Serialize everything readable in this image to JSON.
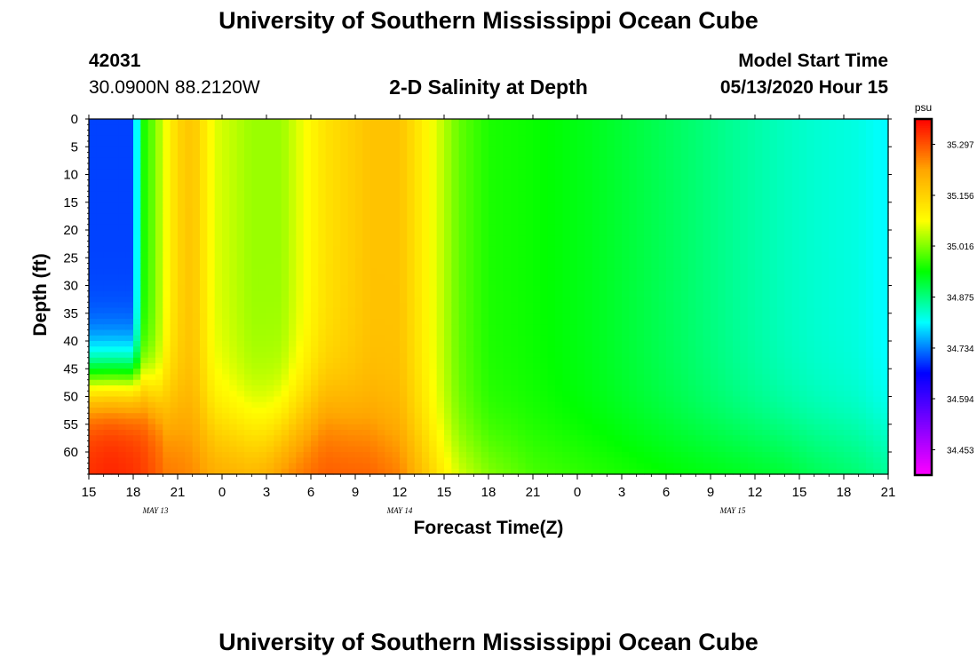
{
  "header": {
    "title": "University of Southern Mississippi Ocean Cube",
    "station_id": "42031",
    "location": "30.0900N 88.2120W",
    "plot_title": "2-D Salinity at Depth",
    "model_start_label": "Model Start Time",
    "model_start_value": "05/13/2020 Hour 15"
  },
  "footer": {
    "title": "University of Southern Mississippi Ocean Cube"
  },
  "colors": {
    "background": "#ffffff",
    "frame": "#000000",
    "scale": [
      "#ff00ff",
      "#7f00ff",
      "#0000ff",
      "#00ffff",
      "#00ff00",
      "#ffff00",
      "#ffa500",
      "#ff0000"
    ]
  },
  "chart_data": {
    "type": "heatmap",
    "title": "2-D Salinity at Depth",
    "xlabel": "Forecast Time(Z)",
    "ylabel": "Depth (ft)",
    "x_tick_labels": [
      "15",
      "18",
      "21",
      "0",
      "3",
      "6",
      "9",
      "12",
      "15",
      "18",
      "21",
      "0",
      "3",
      "6",
      "9",
      "12",
      "15",
      "18",
      "21"
    ],
    "x_hours_range": [
      0,
      54
    ],
    "date_labels": [
      {
        "text": "MAY 13",
        "hour": 4.5
      },
      {
        "text": "MAY 14",
        "hour": 21
      },
      {
        "text": "MAY 15",
        "hour": 43.5
      }
    ],
    "y_ticks": [
      0,
      5,
      10,
      15,
      20,
      25,
      30,
      35,
      40,
      45,
      50,
      55,
      60
    ],
    "ylim": [
      0,
      64
    ],
    "colorbar": {
      "unit": "psu",
      "min": 34.383,
      "max": 35.367,
      "ticks": [
        "35.297",
        "35.156",
        "35.016",
        "34.875",
        "34.734",
        "34.594",
        "34.453"
      ]
    },
    "salinity_by_time": {
      "hours": [
        0,
        1.5,
        3,
        3.6,
        4.3,
        5,
        6,
        7,
        8.5,
        11,
        13,
        16,
        19,
        21,
        23,
        25,
        27,
        30,
        34,
        37,
        40,
        44,
        47,
        49,
        52,
        54
      ],
      "surface": [
        34.7,
        34.7,
        34.7,
        34.95,
        35.0,
        35.06,
        35.15,
        35.18,
        35.07,
        35.03,
        35.03,
        35.13,
        35.18,
        35.18,
        35.09,
        35.0,
        34.96,
        34.95,
        34.93,
        34.91,
        34.89,
        34.86,
        34.84,
        34.83,
        34.82,
        34.8
      ],
      "bottom": [
        35.33,
        35.34,
        35.33,
        35.32,
        35.3,
        35.28,
        35.27,
        35.26,
        35.24,
        35.24,
        35.28,
        35.3,
        35.3,
        35.28,
        35.2,
        35.1,
        35.05,
        35.0,
        34.98,
        34.97,
        34.96,
        34.95,
        34.94,
        34.92,
        34.9,
        34.88
      ]
    }
  }
}
